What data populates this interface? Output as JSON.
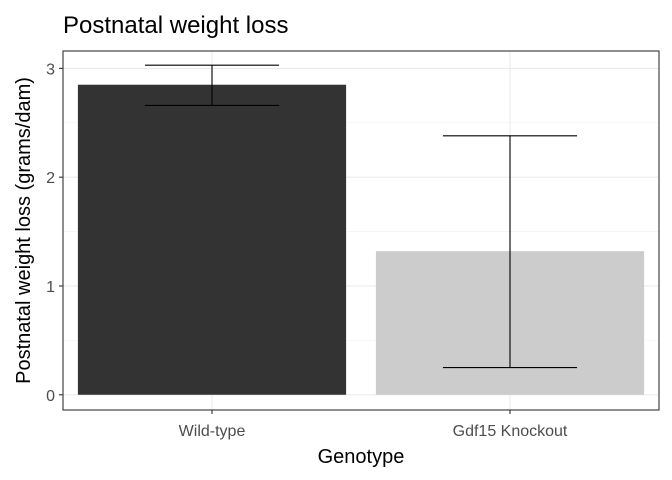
{
  "chart_data": {
    "type": "bar",
    "title": "Postnatal weight loss",
    "xlabel": "Genotype",
    "ylabel": "Postnatal weight loss (grams/dam)",
    "categories": [
      "Wild-type",
      "Gdf15 Knockout"
    ],
    "values": [
      2.85,
      1.32
    ],
    "error_bars": [
      {
        "lower": 2.66,
        "upper": 3.03
      },
      {
        "lower": 0.25,
        "upper": 2.38
      }
    ],
    "bar_colors": [
      "#333333",
      "#cccccc"
    ],
    "ylim": [
      -0.14,
      3.16
    ],
    "yticks": [
      0,
      1,
      2,
      3
    ],
    "grid": true,
    "legend": "none"
  }
}
